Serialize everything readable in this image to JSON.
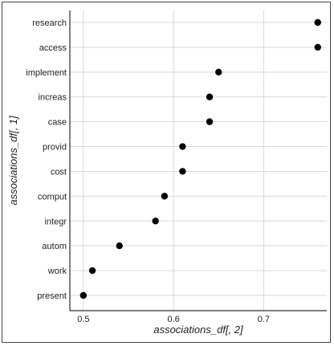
{
  "chart_data": {
    "type": "scatter",
    "title": "",
    "xlabel": "associations_df[, 2]",
    "ylabel": "associations_df[, 1]",
    "xlim": [
      0.485,
      0.77
    ],
    "x_ticks": [
      0.5,
      0.6,
      0.7
    ],
    "x_tick_labels": [
      "0.5",
      "0.6",
      "0.7"
    ],
    "grid": true,
    "legend": "none",
    "point_color": "#000000",
    "categories": [
      "research",
      "access",
      "implement",
      "increas",
      "case",
      "provid",
      "cost",
      "comput",
      "integr",
      "autom",
      "work",
      "present"
    ],
    "values": [
      0.76,
      0.76,
      0.65,
      0.64,
      0.64,
      0.61,
      0.61,
      0.59,
      0.58,
      0.54,
      0.51,
      0.5
    ]
  }
}
